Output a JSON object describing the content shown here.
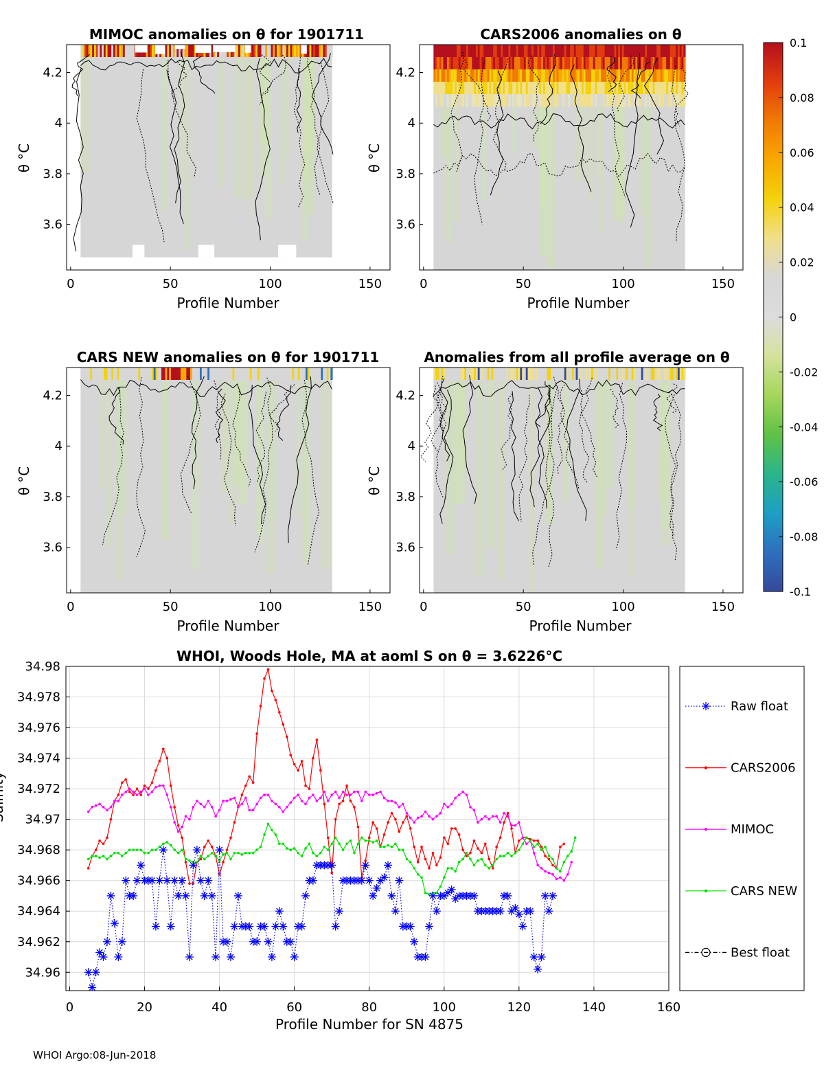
{
  "colors": {
    "raw": "#0000ff",
    "cars2006": "#ff0000",
    "mimoc": "#ff00ff",
    "cars_new": "#00e000",
    "best": "#000000",
    "grid": "#d9d9d9",
    "field": "#d6d6d6"
  },
  "heatmaps": [
    {
      "title": "MIMOC anomalies on θ  for 1901711",
      "xlabel": "Profile Number",
      "ylabel": "θ °C"
    },
    {
      "title": "CARS2006 anomalies on θ",
      "xlabel": "Profile Number",
      "ylabel": "θ °C"
    },
    {
      "title": "CARS NEW anomalies on θ for 1901711",
      "xlabel": "Profile Number",
      "ylabel": "θ °C"
    },
    {
      "title": "Anomalies from all profile average on θ",
      "xlabel": "Profile Number",
      "ylabel": "θ °C"
    }
  ],
  "heatmap_axes": {
    "xlim": [
      -2,
      160
    ],
    "ylim": [
      3.42,
      4.31
    ],
    "xticks": [
      "0",
      "50",
      "100",
      "150"
    ],
    "yticks": [
      "4.2",
      "4",
      "3.8",
      "3.6"
    ]
  },
  "colorbar": {
    "ticks": [
      "0.1",
      "0.08",
      "0.06",
      "0.04",
      "0.02",
      "0",
      "-0.02",
      "-0.04",
      "-0.06",
      "-0.08",
      "-0.1"
    ],
    "range": [
      -0.1,
      0.1
    ],
    "stops": [
      "#36499b",
      "#2f6fbe",
      "#1d9fc3",
      "#2bb58a",
      "#5fc246",
      "#a4d65a",
      "#d4e29c",
      "#dcdcdc",
      "#d7d7d7",
      "#f0df8c",
      "#f4d20c",
      "#f8a800",
      "#f17a04",
      "#e23c0e",
      "#b4101e"
    ]
  },
  "chart_data": [
    {
      "type": "heatmap",
      "title": "MIMOC anomalies on θ  for 1901711",
      "xlabel": "Profile Number",
      "ylabel": "θ °C",
      "xlim": [
        -2,
        160
      ],
      "ylim": [
        3.42,
        4.31
      ],
      "profiles": [
        5,
        131
      ],
      "description_values": {
        "background_anomaly": 0.003,
        "top_band_max": 0.1
      }
    },
    {
      "type": "heatmap",
      "title": "CARS2006 anomalies on θ",
      "xlabel": "Profile Number",
      "ylabel": "θ °C",
      "xlim": [
        -2,
        160
      ],
      "ylim": [
        3.42,
        4.31
      ],
      "profiles": [
        5,
        131
      ],
      "description_values": {
        "background_anomaly": 0.005,
        "top_band_max": 0.1
      }
    },
    {
      "type": "heatmap",
      "title": "CARS NEW anomalies on θ for 1901711",
      "xlabel": "Profile Number",
      "ylabel": "θ °C",
      "xlim": [
        -2,
        160
      ],
      "ylim": [
        3.42,
        4.31
      ],
      "profiles": [
        5,
        131
      ],
      "description_values": {
        "background_anomaly": 0.0,
        "top_band_max": 0.1
      }
    },
    {
      "type": "heatmap",
      "title": "Anomalies from all profile average on θ",
      "xlabel": "Profile Number",
      "ylabel": "θ °C",
      "xlim": [
        -2,
        160
      ],
      "ylim": [
        3.42,
        4.31
      ],
      "profiles": [
        5,
        131
      ],
      "description_values": {
        "background_anomaly": 0.0,
        "top_band_max": 0.03
      }
    },
    {
      "type": "line",
      "title": "WHOI, Woods Hole, MA at aoml S on θ = 3.6226°C",
      "xlabel": "Profile Number for SN 4875",
      "ylabel": "Salinity",
      "xlim": [
        -1,
        160
      ],
      "ylim": [
        34.9588,
        34.98
      ],
      "xticks": [
        "0",
        "20",
        "40",
        "60",
        "80",
        "100",
        "120",
        "140",
        "160"
      ],
      "yticks": [
        "34.96",
        "34.962",
        "34.964",
        "34.966",
        "34.968",
        "34.97",
        "34.972",
        "34.974",
        "34.976",
        "34.978",
        "34.98"
      ],
      "grid": true,
      "legend": [
        "Raw float",
        "CARS2006",
        "MIMOC",
        "CARS NEW",
        "Best float"
      ],
      "legend_position": "outside-right",
      "series": [
        {
          "name": "Raw float",
          "marker": "asterisk",
          "start": 5,
          "values": [
            34.96,
            34.959,
            34.96,
            34.9613,
            34.961,
            34.962,
            34.965,
            34.9632,
            34.961,
            34.962,
            34.966,
            34.965,
            34.965,
            34.966,
            34.967,
            34.966,
            34.966,
            34.966,
            34.963,
            34.966,
            34.968,
            34.966,
            34.963,
            34.966,
            34.965,
            34.966,
            34.965,
            34.961,
            34.967,
            34.968,
            34.966,
            34.965,
            34.966,
            34.965,
            34.961,
            34.968,
            34.962,
            34.962,
            34.961,
            34.963,
            34.965,
            34.963,
            34.963,
            34.963,
            34.962,
            34.962,
            34.963,
            34.963,
            34.962,
            34.961,
            34.963,
            34.964,
            34.963,
            34.962,
            34.962,
            34.961,
            34.963,
            34.963,
            34.965,
            34.966,
            34.966,
            34.967,
            34.967,
            34.967,
            34.967,
            34.967,
            34.963,
            34.964,
            34.966,
            34.966,
            34.966,
            34.966,
            34.966,
            34.966,
            34.967,
            34.966,
            34.965,
            34.9655,
            34.966,
            34.9662,
            34.967,
            34.965,
            34.964,
            34.966,
            34.963,
            34.963,
            34.963,
            34.962,
            34.961,
            34.961,
            34.961,
            34.963,
            34.965,
            34.964,
            34.965,
            34.965,
            34.9652,
            34.9654,
            34.9648,
            34.965,
            34.965,
            34.965,
            34.965,
            34.965,
            34.964,
            34.964,
            34.964,
            34.964,
            34.964,
            34.964,
            34.964,
            34.965,
            34.965,
            34.964,
            34.9642,
            34.9638,
            34.963,
            34.964,
            34.964,
            34.961,
            34.9602,
            34.961,
            34.965,
            34.964,
            34.965
          ]
        },
        {
          "name": "CARS2006",
          "marker": "dot",
          "start": 5,
          "values": [
            34.9668,
            34.9676,
            34.968,
            34.9686,
            34.9684,
            34.9688,
            34.97,
            34.9712,
            34.9716,
            34.9724,
            34.9726,
            34.9718,
            34.9716,
            34.972,
            34.9716,
            34.9722,
            34.972,
            34.9724,
            34.9732,
            34.9738,
            34.9746,
            34.974,
            34.9722,
            34.9708,
            34.9696,
            34.9688,
            34.9672,
            34.9658,
            34.9658,
            34.9672,
            34.9674,
            34.9682,
            34.9686,
            34.9682,
            34.9676,
            34.9664,
            34.9672,
            34.968,
            34.9688,
            34.9698,
            34.9708,
            34.9716,
            34.9722,
            34.9728,
            34.9724,
            34.9756,
            34.9774,
            34.9792,
            34.9798,
            34.9784,
            34.9778,
            34.977,
            34.9762,
            34.9754,
            34.9742,
            34.9736,
            34.9732,
            34.9738,
            34.9722,
            34.972,
            34.974,
            34.9752,
            34.9732,
            34.971,
            34.9688,
            34.9665,
            34.97,
            34.971,
            34.9712,
            34.9722,
            34.9712,
            34.9708,
            34.9695,
            34.9662,
            34.9673,
            34.9688,
            34.9698,
            34.9694,
            34.9682,
            34.969,
            34.9698,
            34.9704,
            34.97,
            34.9692,
            34.9698,
            34.9702,
            34.9694,
            34.9682,
            34.9672,
            34.9682,
            34.9674,
            34.9668,
            34.9678,
            34.967,
            34.9675,
            34.9688,
            34.9684,
            34.9694,
            34.9694,
            34.969,
            34.968,
            34.9676,
            34.9678,
            34.9686,
            34.9681,
            34.9678,
            34.9684,
            34.9674,
            34.9668,
            34.9682,
            34.9688,
            34.9698,
            34.9704,
            34.9694,
            34.9678,
            34.9686,
            34.9688,
            34.9688,
            34.9687,
            34.9686,
            34.9686,
            34.9682,
            34.9676,
            34.9674,
            34.967,
            34.9668,
            34.9682,
            34.9684
          ]
        },
        {
          "name": "MIMOC",
          "marker": "dot",
          "start": 5,
          "values": [
            34.9705,
            34.9708,
            34.9709,
            34.971,
            34.9708,
            34.9706,
            34.9708,
            34.9712,
            34.9712,
            34.9716,
            34.9718,
            34.972,
            34.9718,
            34.9716,
            34.9718,
            34.972,
            34.9716,
            34.9718,
            34.9721,
            34.9722,
            34.9722,
            34.9716,
            34.9708,
            34.9698,
            34.9692,
            34.9695,
            34.9702,
            34.97,
            34.9708,
            34.9712,
            34.971,
            34.9708,
            34.9712,
            34.9708,
            34.9702,
            34.9706,
            34.9712,
            34.9712,
            34.9713,
            34.9714,
            34.9708,
            34.971,
            34.9714,
            34.9706,
            34.9706,
            34.971,
            34.9714,
            34.9716,
            34.9716,
            34.9712,
            34.971,
            34.9708,
            34.9705,
            34.9708,
            34.9711,
            34.9714,
            34.9716,
            34.9712,
            34.971,
            34.9714,
            34.9716,
            34.9712,
            34.9714,
            34.9718,
            34.9712,
            34.9716,
            34.9718,
            34.9714,
            34.9718,
            34.9716,
            34.9716,
            34.9718,
            34.9718,
            34.9712,
            34.9718,
            34.9716,
            34.9716,
            34.9717,
            34.9718,
            34.9714,
            34.9712,
            34.9712,
            34.9711,
            34.9708,
            34.971,
            34.9704,
            34.9701,
            34.9698,
            34.9701,
            34.9702,
            34.9705,
            34.9702,
            34.97,
            34.9702,
            34.9704,
            34.971,
            34.9708,
            34.971,
            34.9714,
            34.9716,
            34.9718,
            34.9716,
            34.9708,
            34.9706,
            34.9698,
            34.97,
            34.9702,
            34.97,
            34.9702,
            34.9702,
            34.9698,
            34.9704,
            34.9702,
            34.9696,
            34.9696,
            34.9698,
            34.9688,
            34.9684,
            34.9686,
            34.9678,
            34.967,
            34.9668,
            34.9666,
            34.9665,
            34.9664,
            34.9661,
            34.9662,
            34.966,
            34.9664,
            34.9672
          ]
        },
        {
          "name": "CARS NEW",
          "marker": "dot",
          "start": 5,
          "values": [
            34.9674,
            34.9676,
            34.9676,
            34.9675,
            34.9676,
            34.9674,
            34.9676,
            34.9678,
            34.9678,
            34.9676,
            34.9678,
            34.968,
            34.968,
            34.968,
            34.968,
            34.9678,
            34.9678,
            34.968,
            34.968,
            34.9682,
            34.9684,
            34.9685,
            34.9683,
            34.968,
            34.9678,
            34.968,
            34.9674,
            34.9673,
            34.9672,
            34.9672,
            34.9676,
            34.9674,
            34.9676,
            34.9678,
            34.9676,
            34.9673,
            34.9677,
            34.9678,
            34.9674,
            34.9678,
            34.9678,
            34.9677,
            34.9678,
            34.9678,
            34.9678,
            34.968,
            34.9682,
            34.969,
            34.9697,
            34.9693,
            34.969,
            34.9684,
            34.9684,
            34.9681,
            34.968,
            34.9681,
            34.9678,
            34.9676,
            34.9681,
            34.9684,
            34.9678,
            34.9676,
            34.9678,
            34.9682,
            34.968,
            34.9684,
            34.9688,
            34.9684,
            34.968,
            34.9684,
            34.9686,
            34.9678,
            34.9684,
            34.9688,
            34.9686,
            34.9686,
            34.9685,
            34.9686,
            34.9682,
            34.9682,
            34.9683,
            34.9682,
            34.9684,
            34.968,
            34.968,
            34.9674,
            34.9672,
            34.9668,
            34.9664,
            34.9662,
            34.9652,
            34.9651,
            34.9652,
            34.9652,
            34.9656,
            34.9662,
            34.9668,
            34.9668,
            34.9666,
            34.9672,
            34.9674,
            34.9678,
            34.9674,
            34.967,
            34.9673,
            34.9674,
            34.967,
            34.9668,
            34.967,
            34.9674,
            34.9676,
            34.9676,
            34.9678,
            34.9676,
            34.9678,
            34.968,
            34.9684,
            34.9688,
            34.9686,
            34.9682,
            34.9684,
            34.968,
            34.9682,
            34.9676,
            34.9674,
            34.9668,
            34.9666,
            34.9672,
            34.9676,
            34.9679,
            34.9688
          ]
        }
      ]
    }
  ],
  "footer": "WHOI Argo:08-Jun-2018"
}
